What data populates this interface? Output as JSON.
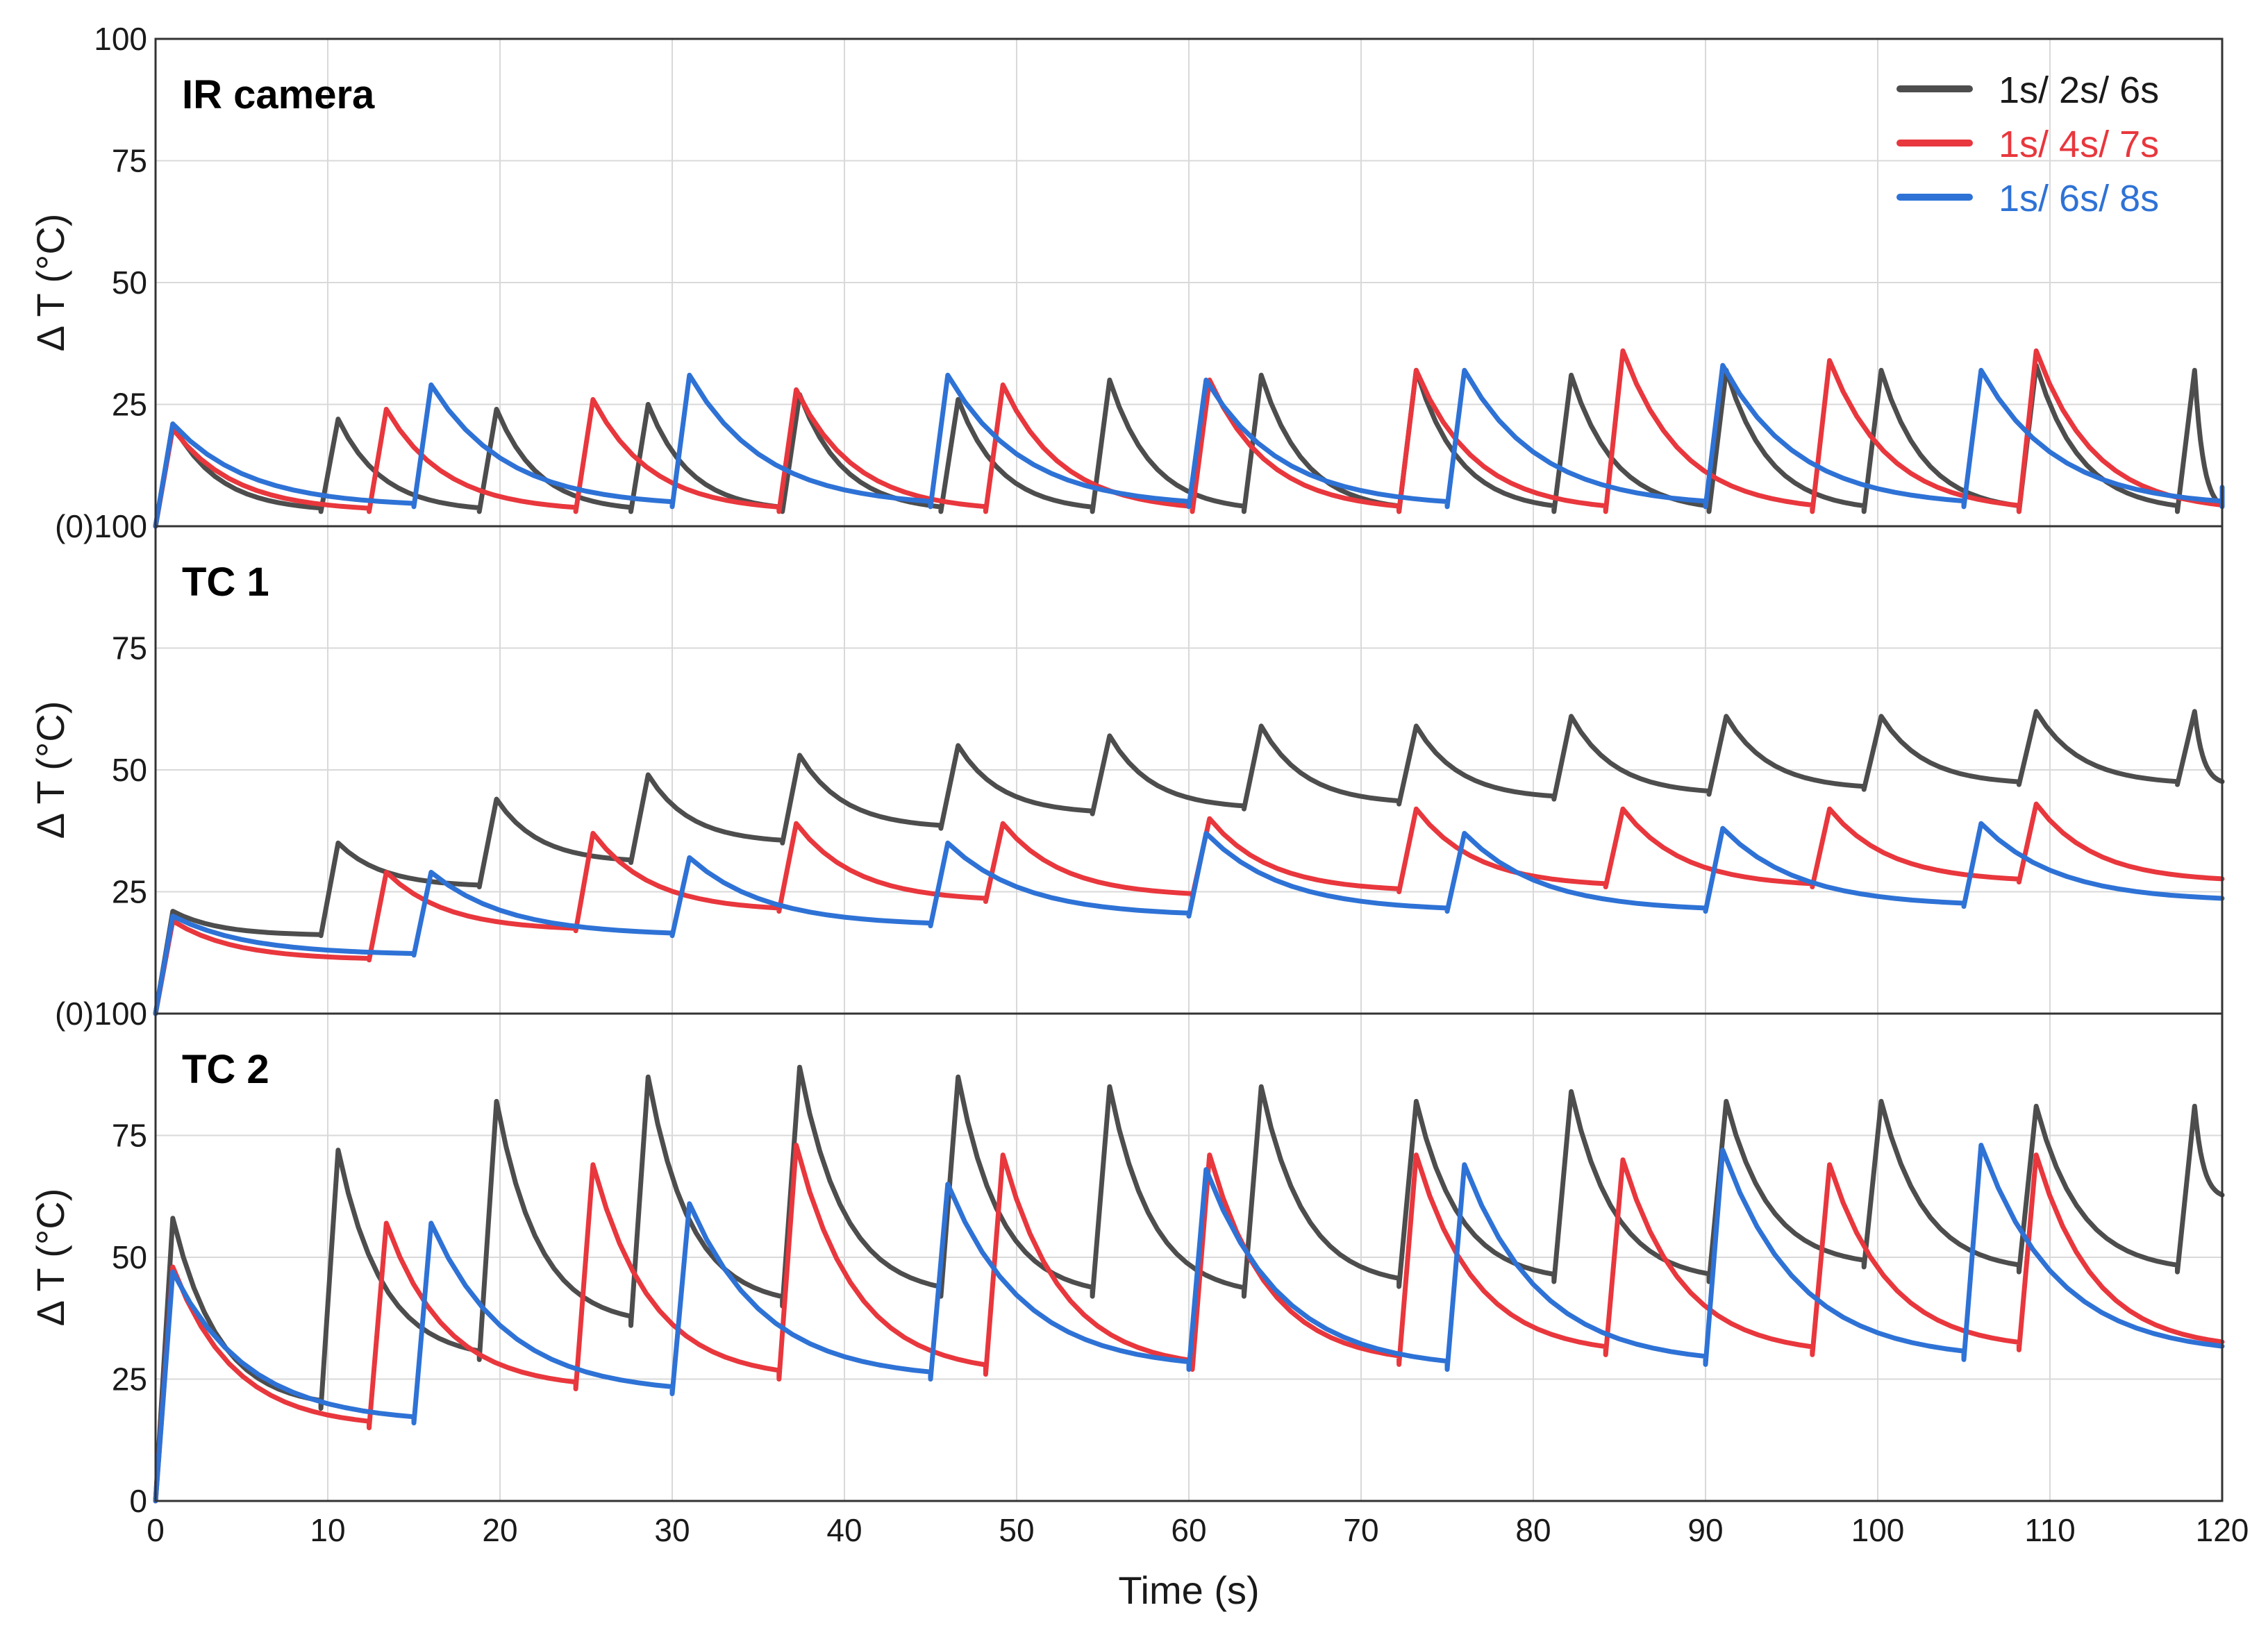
{
  "chart_data": {
    "type": "line",
    "xlabel": "Time (s)",
    "ylabel": "Δ T (°C)",
    "xlim": [
      0,
      120
    ],
    "ylim": [
      0,
      100
    ],
    "x_ticks": [
      "0",
      "10",
      "20",
      "30",
      "40",
      "50",
      "60",
      "70",
      "80",
      "90",
      "100",
      "110",
      "120"
    ],
    "grid": true,
    "legend": {
      "placement": "top-right",
      "entries": [
        {
          "name": "1s/ 2s/ 6s",
          "color": "#4d4d4d"
        },
        {
          "name": "1s/ 4s/ 7s",
          "color": "#e8373d"
        },
        {
          "name": "1s/ 6s/ 8s",
          "color": "#2e72d6"
        }
      ]
    },
    "panels": [
      {
        "title": "IR camera",
        "y_ticks": [
          "(0)100",
          "25",
          "50",
          "75",
          "100"
        ],
        "series": [
          {
            "name": "1s/ 2s/ 6s",
            "color": "#4d4d4d",
            "start": 0,
            "peak": 21,
            "rise_time": 1,
            "hold_time": 2,
            "period": 9,
            "first_cycle": [
              0,
              1
            ],
            "cycle_starts": [
              0,
              9.6,
              18.8,
              27.6,
              36.4,
              45.6,
              54.4,
              63.2,
              72.2,
              81.2,
              90.2,
              99.2,
              108.2,
              117.4
            ],
            "peaks": [
              21,
              22,
              24,
              25,
              27,
              26,
              30,
              31,
              32,
              31,
              32,
              32,
              33,
              32
            ],
            "baselines": [
              3,
              3,
              3,
              3,
              3,
              3,
              3,
              3,
              3,
              3,
              3,
              3,
              3,
              3
            ]
          },
          {
            "name": "1s/ 4s/ 7s",
            "color": "#e8373d",
            "start": 0,
            "peak": 20,
            "rise_time": 1,
            "hold_time": 4,
            "period": 12,
            "first_cycle": [
              0,
              1
            ],
            "cycle_starts": [
              0,
              12.4,
              24.4,
              36.2,
              48.2,
              60.2,
              72.2,
              84.2,
              96.2,
              108.2
            ],
            "peaks": [
              20,
              24,
              26,
              28,
              29,
              30,
              32,
              36,
              34,
              36
            ],
            "baselines": [
              3,
              3,
              3,
              3,
              3,
              3,
              3,
              3,
              3,
              3
            ]
          },
          {
            "name": "1s/ 6s/ 8s",
            "color": "#2e72d6",
            "start": 0,
            "peak": 21,
            "rise_time": 1,
            "hold_time": 6,
            "period": 15,
            "first_cycle": [
              0,
              1
            ],
            "cycle_starts": [
              0,
              15,
              30,
              45,
              60,
              75,
              90,
              105,
              120
            ],
            "peaks": [
              21,
              29,
              31,
              31,
              30,
              32,
              33,
              32,
              8
            ],
            "baselines": [
              4,
              4,
              4,
              4,
              4,
              4,
              4,
              4,
              4
            ]
          }
        ]
      },
      {
        "title": "TC 1",
        "y_ticks": [
          "(0)100",
          "25",
          "50",
          "75",
          ""
        ],
        "series": [
          {
            "name": "1s/ 2s/ 6s",
            "color": "#4d4d4d",
            "start": 0,
            "peak": 21,
            "rise_time": 1,
            "hold_time": 2,
            "period": 9,
            "first_cycle": [
              0,
              1
            ],
            "cycle_starts": [
              0,
              9.6,
              18.8,
              27.6,
              36.4,
              45.6,
              54.4,
              63.2,
              72.2,
              81.2,
              90.2,
              99.2,
              108.2,
              117.4
            ],
            "peaks": [
              21,
              35,
              44,
              49,
              53,
              55,
              57,
              59,
              59,
              61,
              61,
              61,
              62,
              62
            ],
            "baselines": [
              16,
              26,
              31,
              35,
              38,
              41,
              42,
              43,
              44,
              45,
              46,
              47,
              47,
              47
            ]
          },
          {
            "name": "1s/ 4s/ 7s",
            "color": "#e8373d",
            "start": 0,
            "peak": 19,
            "rise_time": 1,
            "hold_time": 4,
            "period": 12,
            "first_cycle": [
              0,
              1
            ],
            "cycle_starts": [
              0,
              12.4,
              24.4,
              36.2,
              48.2,
              60.2,
              72.2,
              84.2,
              96.2,
              108.2
            ],
            "peaks": [
              19,
              29,
              37,
              39,
              39,
              40,
              42,
              42,
              42,
              43
            ],
            "baselines": [
              11,
              17,
              21,
              23,
              24,
              25,
              26,
              26,
              27,
              27
            ]
          },
          {
            "name": "1s/ 6s/ 8s",
            "color": "#2e72d6",
            "start": 0,
            "peak": 20,
            "rise_time": 1,
            "hold_time": 6,
            "period": 15,
            "first_cycle": [
              0,
              1
            ],
            "cycle_starts": [
              0,
              15,
              30,
              45,
              60,
              75,
              90,
              105
            ],
            "peaks": [
              20,
              29,
              32,
              35,
              37,
              37,
              38,
              39
            ],
            "baselines": [
              12,
              16,
              18,
              20,
              21,
              21,
              22,
              23
            ]
          }
        ]
      },
      {
        "title": "TC 2",
        "y_ticks": [
          "0",
          "25",
          "50",
          "75",
          ""
        ],
        "series": [
          {
            "name": "1s/ 2s/ 6s",
            "color": "#4d4d4d",
            "start": 0,
            "peak": 58,
            "rise_time": 1,
            "hold_time": 2,
            "period": 9,
            "first_cycle": [
              0,
              1
            ],
            "cycle_starts": [
              0,
              9.6,
              18.8,
              27.6,
              36.4,
              45.6,
              54.4,
              63.2,
              72.2,
              81.2,
              90.2,
              99.2,
              108.2,
              117.4
            ],
            "peaks": [
              58,
              72,
              82,
              87,
              89,
              87,
              85,
              85,
              82,
              84,
              82,
              82,
              81,
              81
            ],
            "baselines": [
              19,
              29,
              36,
              40,
              42,
              42,
              42,
              44,
              45,
              45,
              48,
              47,
              47,
              62
            ]
          },
          {
            "name": "1s/ 4s/ 7s",
            "color": "#e8373d",
            "start": 0,
            "peak": 48,
            "rise_time": 1,
            "hold_time": 4,
            "period": 12,
            "first_cycle": [
              0,
              1
            ],
            "cycle_starts": [
              0,
              12.4,
              24.4,
              36.2,
              48.2,
              60.2,
              72.2,
              84.2,
              96.2,
              108.2
            ],
            "peaks": [
              48,
              57,
              69,
              73,
              71,
              71,
              71,
              70,
              69,
              71
            ],
            "baselines": [
              15,
              23,
              25,
              26,
              27,
              28,
              30,
              30,
              31,
              31
            ]
          },
          {
            "name": "1s/ 6s/ 8s",
            "color": "#2e72d6",
            "start": 0,
            "peak": 47,
            "rise_time": 1,
            "hold_time": 6,
            "period": 15,
            "first_cycle": [
              0,
              1
            ],
            "cycle_starts": [
              0,
              15,
              30,
              45,
              60,
              75,
              90,
              105
            ],
            "peaks": [
              47,
              57,
              61,
              65,
              68,
              69,
              72,
              73
            ],
            "baselines": [
              16,
              22,
              25,
              27,
              27,
              28,
              29,
              30
            ]
          }
        ]
      }
    ]
  }
}
